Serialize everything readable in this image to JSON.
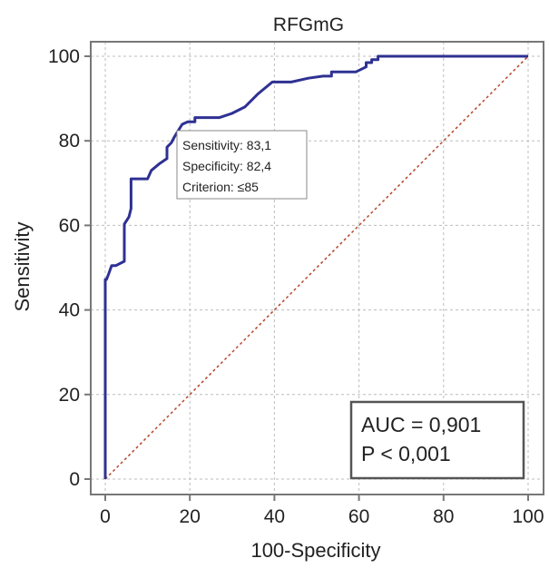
{
  "chart_data": {
    "type": "line",
    "title": "RFGmG",
    "xlabel": "100-Specificity",
    "ylabel": "Sensitivity",
    "xlim": [
      0,
      100
    ],
    "ylim": [
      0,
      100
    ],
    "xticks": [
      0,
      20,
      40,
      60,
      80,
      100
    ],
    "yticks": [
      0,
      20,
      40,
      60,
      80,
      100
    ],
    "grid": true,
    "series": [
      {
        "kind": "roc-curve",
        "color": "#2E3192",
        "x": [
          0,
          0,
          0.3,
          0.8,
          1.5,
          2.5,
          4.5,
          4.5,
          5.6,
          6.1,
          6.1,
          7,
          10,
          10.9,
          12.7,
          14.6,
          14.6,
          15.6,
          16.4,
          17.3,
          18.2,
          19.5,
          20.8,
          21.2,
          21.2,
          27,
          30,
          33,
          36,
          39.5,
          44,
          48,
          51.5,
          53.5,
          53.5,
          58,
          59.3,
          61.7,
          61.7,
          63,
          63,
          64.5,
          64.5,
          100
        ],
        "y": [
          0,
          47.2,
          47.2,
          48.5,
          50.5,
          50.5,
          51.5,
          60.3,
          62,
          64,
          71,
          71,
          71,
          73,
          74.5,
          75.8,
          78.5,
          79.5,
          81,
          82.5,
          83.9,
          84.5,
          84.5,
          84.5,
          85.5,
          85.5,
          86.5,
          88,
          91,
          93.9,
          93.9,
          94.8,
          95.3,
          95.3,
          96.3,
          96.3,
          96.3,
          97.5,
          98.5,
          98.5,
          99.2,
          99.2,
          100,
          100
        ]
      },
      {
        "kind": "reference-diagonal",
        "color": "#B5472E",
        "x": [
          0,
          100
        ],
        "y": [
          0,
          100
        ]
      }
    ],
    "annotation": {
      "sensitivity": "Sensitivity: 83,1",
      "specificity": "Specificity: 82,4",
      "criterion": "Criterion: ≤85",
      "point_x": 17.6,
      "point_y": 83.1
    },
    "stats": {
      "auc": "AUC = 0,901",
      "p": "P < 0,001"
    }
  }
}
